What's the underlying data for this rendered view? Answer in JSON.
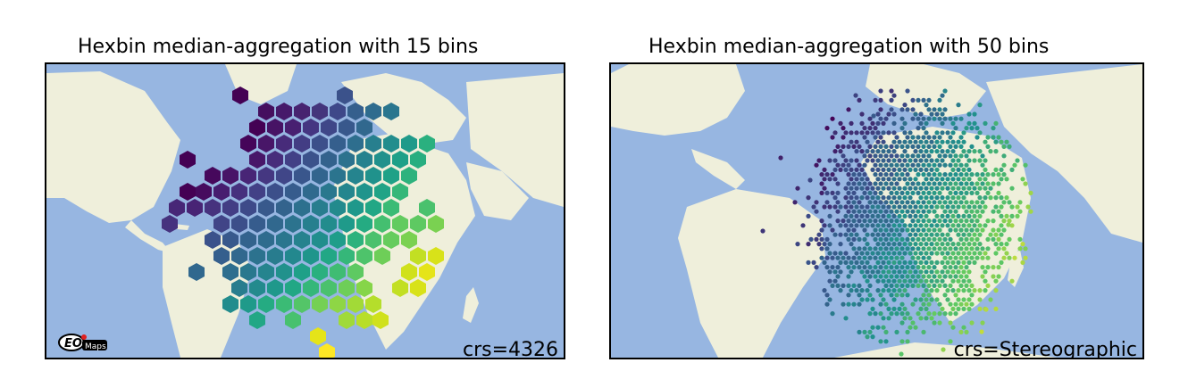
{
  "left_map": {
    "title": "Hexbin median-aggregation with 15 bins",
    "crs_label": "crs=4326"
  },
  "right_map": {
    "title": "Hexbin median-aggregation with 50 bins",
    "crs_label": "crs=Stereographic"
  },
  "logo_text": "Maps",
  "colors": {
    "ocean": "#97b6e1",
    "land": "#efefdb",
    "colormap": [
      "#440154",
      "#3b528b",
      "#21918c",
      "#5ec962",
      "#fde725"
    ]
  }
}
